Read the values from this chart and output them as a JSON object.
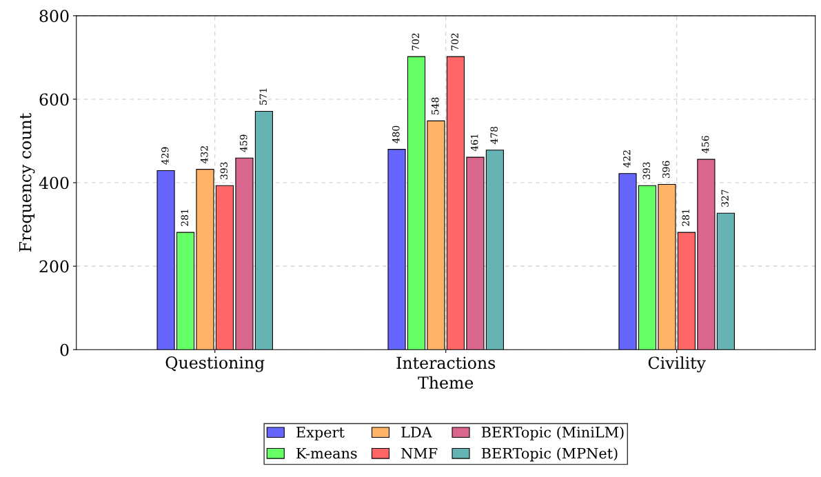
{
  "chart_data": {
    "type": "bar",
    "xlabel": "Theme",
    "ylabel": "Frequency count",
    "categories": [
      "Questioning",
      "Interactions",
      "Civility"
    ],
    "series": [
      {
        "name": "Expert",
        "color": "#6666ff",
        "values": [
          429,
          480,
          422
        ]
      },
      {
        "name": "K-means",
        "color": "#66ff66",
        "values": [
          281,
          702,
          393
        ]
      },
      {
        "name": "LDA",
        "color": "#ffb366",
        "values": [
          432,
          548,
          396
        ]
      },
      {
        "name": "NMF",
        "color": "#ff6666",
        "values": [
          393,
          702,
          281
        ]
      },
      {
        "name": "BERTopic (MiniLM)",
        "color": "#d9668c",
        "values": [
          459,
          461,
          456
        ]
      },
      {
        "name": "BERTopic (MPNet)",
        "color": "#66b3b3",
        "values": [
          571,
          478,
          327
        ]
      }
    ],
    "ylim": [
      0,
      800
    ],
    "yticks": [
      0,
      200,
      400,
      600,
      800
    ],
    "grid": true,
    "legend": "bottom",
    "data_labels": true
  }
}
